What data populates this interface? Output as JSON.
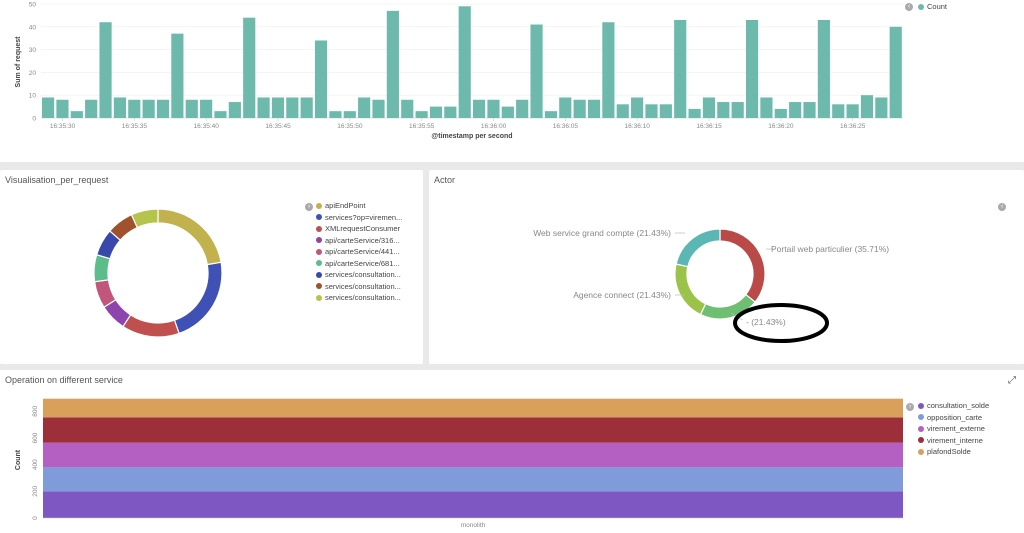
{
  "colors": {
    "teal": "#6dbaad",
    "panel_bg": "#ffffff",
    "annotation": "#000000"
  },
  "top_chart": {
    "legend_label": "Count",
    "y_label": "Sum of request",
    "x_label": "@timestamp per second",
    "y_ticks": [
      "0",
      "10",
      "20",
      "30",
      "40",
      "50"
    ],
    "x_ticks": [
      "16:35:30",
      "16:35:35",
      "16:35:40",
      "16:35:45",
      "16:35:50",
      "16:35:55",
      "16:36:00",
      "16:36:05",
      "16:36:10",
      "16:36:15",
      "16:36:20",
      "16:36:25"
    ]
  },
  "visualisation_panel": {
    "title": "Visualisation_per_request",
    "legend": [
      {
        "label": "apiEndPoint",
        "color": "#c2b24d"
      },
      {
        "label": "services?op=viremen...",
        "color": "#3f51b5"
      },
      {
        "label": "XMLrequestConsumer",
        "color": "#c0504d"
      },
      {
        "label": "api/carteService/316...",
        "color": "#8e44ad"
      },
      {
        "label": "api/carteService/441...",
        "color": "#c0567a"
      },
      {
        "label": "api/carteService/681...",
        "color": "#5bbd8a"
      },
      {
        "label": "services/consultation...",
        "color": "#3949ab"
      },
      {
        "label": "services/consultation...",
        "color": "#a0522d"
      },
      {
        "label": "services/consultation...",
        "color": "#b5c44a"
      }
    ]
  },
  "actor_panel": {
    "title": "Actor",
    "labels": {
      "portail": "Portail web particulier (35.71%)",
      "web_service": "Web service grand compte (21.43%)",
      "agence": "Agence connect (21.43%)",
      "dash": "- (21.43%)"
    }
  },
  "operation_panel": {
    "title": "Operation on different service",
    "y_label": "Count",
    "y_ticks": [
      "0",
      "200",
      "400",
      "600",
      "800"
    ],
    "x_tick": "monolith",
    "legend": [
      {
        "label": "consultation_solde",
        "color": "#7e57c2"
      },
      {
        "label": "opposition_carte",
        "color": "#7f9bd9"
      },
      {
        "label": "virement_externe",
        "color": "#b45fc2"
      },
      {
        "label": "virement_interne",
        "color": "#9c2f3a"
      },
      {
        "label": "plafondSolde",
        "color": "#d9a05b"
      }
    ]
  },
  "chart_data": [
    {
      "type": "bar",
      "title": "",
      "xlabel": "@timestamp per second",
      "ylabel": "Sum of request",
      "ylim": [
        0,
        50
      ],
      "x_ticks": [
        "16:35:30",
        "16:35:35",
        "16:35:40",
        "16:35:45",
        "16:35:50",
        "16:35:55",
        "16:36:00",
        "16:36:05",
        "16:36:10",
        "16:36:15",
        "16:36:20",
        "16:36:25"
      ],
      "series": [
        {
          "name": "Count",
          "values": [
            9,
            8,
            3,
            8,
            42,
            9,
            8,
            8,
            8,
            37,
            8,
            8,
            3,
            7,
            44,
            9,
            9,
            9,
            9,
            34,
            3,
            3,
            9,
            8,
            47,
            8,
            3,
            5,
            5,
            49,
            8,
            8,
            5,
            8,
            41,
            3,
            9,
            8,
            8,
            42,
            6,
            9,
            6,
            6,
            43,
            4,
            9,
            7,
            7,
            43,
            9,
            4,
            7,
            7,
            43,
            6,
            6,
            10,
            9,
            40
          ]
        }
      ],
      "grid": true,
      "legend": "top-right"
    },
    {
      "type": "pie",
      "title": "Visualisation_per_request",
      "categories": [
        "apiEndPoint",
        "services?op=viremen...",
        "XMLrequestConsumer",
        "api/carteService/316...",
        "api/carteService/441...",
        "api/carteService/681...",
        "services/consultation...",
        "services/consultation...",
        "services/consultation..."
      ],
      "values": [
        23,
        23,
        15,
        7,
        7,
        7,
        7,
        7,
        7
      ],
      "donut": true,
      "legend": "right"
    },
    {
      "type": "pie",
      "title": "Actor",
      "categories": [
        "Portail web particulier",
        "-",
        "Agence connect",
        "Web service grand compte"
      ],
      "values": [
        35.71,
        21.43,
        21.43,
        21.43
      ],
      "colors": [
        "#b94a48",
        "#6fbf73",
        "#9bc34a",
        "#5bb7b3"
      ],
      "donut": true
    },
    {
      "type": "bar",
      "title": "Operation on different service",
      "ylabel": "Count",
      "ylim": [
        0,
        900
      ],
      "categories": [
        "monolith"
      ],
      "stacked": true,
      "series": [
        {
          "name": "consultation_solde",
          "values": [
            200
          ]
        },
        {
          "name": "opposition_carte",
          "values": [
            180
          ]
        },
        {
          "name": "virement_externe",
          "values": [
            185
          ]
        },
        {
          "name": "virement_interne",
          "values": [
            190
          ]
        },
        {
          "name": "plafondSolde",
          "values": [
            140
          ]
        }
      ],
      "legend": "right"
    }
  ]
}
